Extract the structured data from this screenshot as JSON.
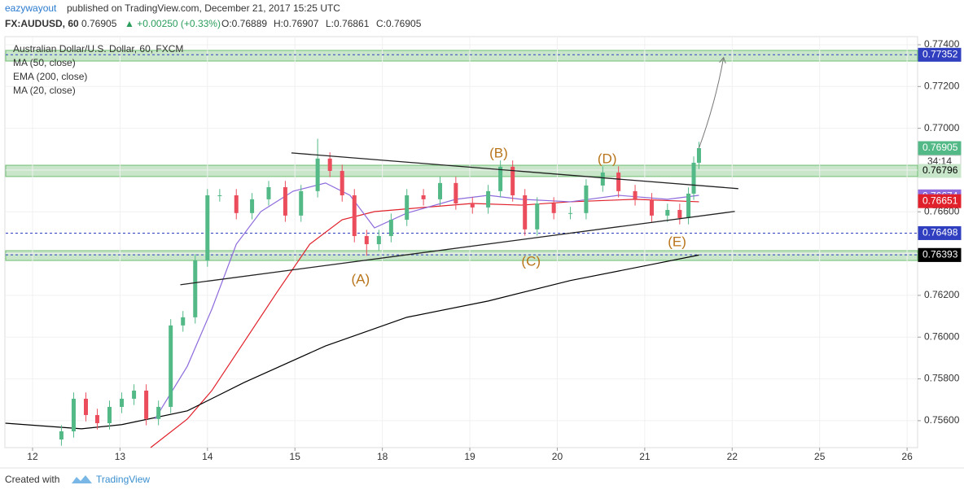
{
  "header": {
    "author": "eazywayout",
    "published": "published on TradingView.com, December 21, 2017 15:25 UTC",
    "symbol": "FX:AUDUSD, 60",
    "last": "0.76905",
    "change": "▲ +0.00250 (+0.33%)",
    "ohlc": [
      "O:0.76889",
      "H:0.76907",
      "L:0.76861",
      "C:0.76905"
    ]
  },
  "footer": {
    "created": "Created with",
    "brand": "TradingView"
  },
  "chart_data": {
    "type": "candlestick",
    "title": "Australian Dollar/U.S. Dollar, 60, FXCM",
    "xlim": [
      -0.307,
      10.12
    ],
    "xticks": [
      {
        "value": 0,
        "label": "12"
      },
      {
        "value": 1,
        "label": "13"
      },
      {
        "value": 2,
        "label": "14"
      },
      {
        "value": 3,
        "label": "15"
      },
      {
        "value": 4,
        "label": "18"
      },
      {
        "value": 5,
        "label": "19"
      },
      {
        "value": 6,
        "label": "20"
      },
      {
        "value": 7,
        "label": "21"
      },
      {
        "value": 8,
        "label": "22"
      },
      {
        "value": 9,
        "label": "25"
      },
      {
        "value": 10,
        "label": "26"
      }
    ],
    "ylim": [
      0.75471,
      0.77435
    ],
    "yticks": [
      {
        "value": 0.774,
        "label": "0.77400"
      },
      {
        "value": 0.772,
        "label": "0.77200"
      },
      {
        "value": 0.77,
        "label": "0.77000"
      },
      {
        "value": 0.768,
        "label": "0.76800"
      },
      {
        "value": 0.766,
        "label": "0.76600"
      },
      {
        "value": 0.764,
        "label": "0.76400"
      },
      {
        "value": 0.762,
        "label": "0.76200"
      },
      {
        "value": 0.76,
        "label": "0.76000"
      },
      {
        "value": 0.758,
        "label": "0.75800"
      },
      {
        "value": 0.756,
        "label": "0.75600"
      }
    ],
    "grid": true,
    "candles": {
      "up_color": "#53b987",
      "down_color": "#eb4d5c",
      "x": [
        0.33,
        0.47,
        0.61,
        0.74,
        0.88,
        1.02,
        1.16,
        1.3,
        1.44,
        1.58,
        1.72,
        1.86,
        2.0,
        2.14,
        2.33,
        2.51,
        2.7,
        2.89,
        3.07,
        3.26,
        3.4,
        3.54,
        3.68,
        3.82,
        3.96,
        4.1,
        4.28,
        4.47,
        4.66,
        4.84,
        5.03,
        5.21,
        5.35,
        5.49,
        5.63,
        5.77,
        5.96,
        6.15,
        6.33,
        6.52,
        6.7,
        6.89,
        7.08,
        7.26,
        7.4,
        7.5,
        7.56,
        7.62
      ],
      "open": [
        0.7551,
        0.75549,
        0.75705,
        0.75627,
        0.75588,
        0.75666,
        0.75705,
        0.75744,
        0.75608,
        0.75666,
        0.76056,
        0.76095,
        0.76367,
        0.76679,
        0.76679,
        0.76594,
        0.7666,
        0.76718,
        0.76582,
        0.76699,
        0.76855,
        0.76796,
        0.76679,
        0.76484,
        0.76445,
        0.76484,
        0.76562,
        0.76679,
        0.7666,
        0.76738,
        0.7664,
        0.76621,
        0.76699,
        0.76816,
        0.76679,
        0.76516,
        0.7664,
        0.76594,
        0.76594,
        0.76726,
        0.76788,
        0.76699,
        0.7666,
        0.76582,
        0.76609,
        0.7657,
        0.76687,
        0.76835
      ],
      "high": [
        0.75579,
        0.75735,
        0.75735,
        0.75657,
        0.75696,
        0.75735,
        0.75774,
        0.75774,
        0.75696,
        0.76086,
        0.76125,
        0.76397,
        0.76709,
        0.76709,
        0.76709,
        0.7669,
        0.76748,
        0.76748,
        0.76729,
        0.7695,
        0.76885,
        0.76826,
        0.76709,
        0.76514,
        0.76514,
        0.76592,
        0.76709,
        0.76709,
        0.76768,
        0.76768,
        0.7667,
        0.76729,
        0.76846,
        0.76846,
        0.76709,
        0.7667,
        0.7667,
        0.76624,
        0.76756,
        0.76818,
        0.76818,
        0.76729,
        0.7669,
        0.76639,
        0.76639,
        0.76717,
        0.76865,
        0.76935
      ],
      "low": [
        0.7548,
        0.75519,
        0.75597,
        0.75558,
        0.75558,
        0.75636,
        0.75675,
        0.75578,
        0.75578,
        0.75636,
        0.76026,
        0.76065,
        0.76337,
        0.76649,
        0.76564,
        0.76564,
        0.7663,
        0.76552,
        0.76552,
        0.76669,
        0.76766,
        0.76649,
        0.76454,
        0.7639,
        0.76415,
        0.76454,
        0.76532,
        0.7663,
        0.7663,
        0.7661,
        0.76591,
        0.76591,
        0.76669,
        0.76649,
        0.76486,
        0.76486,
        0.76564,
        0.76564,
        0.76564,
        0.76696,
        0.76669,
        0.7663,
        0.76552,
        0.76552,
        0.7654,
        0.7654,
        0.76657,
        0.76805
      ],
      "close": [
        0.75549,
        0.75705,
        0.75627,
        0.75588,
        0.75666,
        0.75705,
        0.75744,
        0.75608,
        0.75666,
        0.76056,
        0.76095,
        0.76367,
        0.76679,
        0.76679,
        0.76594,
        0.7666,
        0.76718,
        0.76582,
        0.76699,
        0.76855,
        0.76796,
        0.76679,
        0.76484,
        0.76445,
        0.76484,
        0.76562,
        0.76679,
        0.7666,
        0.76738,
        0.7664,
        0.76621,
        0.76699,
        0.76816,
        0.76679,
        0.76516,
        0.7664,
        0.76594,
        0.76594,
        0.76726,
        0.76788,
        0.76699,
        0.7666,
        0.76582,
        0.76609,
        0.7657,
        0.76687,
        0.76835,
        0.76905
      ]
    },
    "series": [
      {
        "name": "MA (50, close)",
        "color": "#e0202a",
        "x": [
          1.35,
          1.77,
          2.05,
          2.42,
          2.79,
          3.17,
          3.54,
          3.91,
          4.47,
          5.03,
          5.59,
          6.15,
          6.89,
          7.62
        ],
        "values": [
          0.75471,
          0.75608,
          0.75744,
          0.75978,
          0.76212,
          0.76445,
          0.76562,
          0.76601,
          0.76621,
          0.7664,
          0.76632,
          0.76648,
          0.7666,
          0.76648
        ]
      },
      {
        "name": "EMA (200, close)",
        "color": "#000000",
        "x": [
          -0.31,
          0.56,
          1.02,
          1.77,
          2.42,
          3.35,
          4.28,
          5.21,
          6.15,
          7.08,
          7.62
        ],
        "values": [
          0.75588,
          0.75561,
          0.75581,
          0.75647,
          0.75783,
          0.75958,
          0.76095,
          0.76173,
          0.76271,
          0.76348,
          0.76393
        ]
      },
      {
        "name": "MA (20, close)",
        "color": "#8e6bdc",
        "x": [
          1.4,
          1.77,
          2.05,
          2.33,
          2.61,
          2.98,
          3.35,
          3.63,
          3.91,
          4.28,
          4.84,
          5.21,
          5.59,
          6.15,
          6.7,
          7.26,
          7.62
        ],
        "values": [
          0.75608,
          0.75861,
          0.76134,
          0.76445,
          0.76601,
          0.76699,
          0.76738,
          0.76679,
          0.76523,
          0.76594,
          0.7666,
          0.76679,
          0.7666,
          0.76648,
          0.76679,
          0.7666,
          0.76679
        ]
      }
    ],
    "zones": [
      {
        "from": 0.77322,
        "to": 0.77373
      },
      {
        "from": 0.76769,
        "to": 0.76823
      },
      {
        "from": 0.76367,
        "to": 0.76414
      }
    ],
    "price_labels": [
      {
        "value": 0.77352,
        "label": "0.77352",
        "color": "#2f3fbf",
        "text_color": "#ffffff",
        "dotted": true
      },
      {
        "value": 0.76905,
        "label": "0.76905",
        "color": "#53b987",
        "text_color": "#ffffff",
        "dotted": false
      },
      {
        "value": 0.76796,
        "label": "0.76796",
        "color": "#c8e6c9",
        "text_color": "#000000",
        "dotted": false
      },
      {
        "value": 0.76674,
        "label": "0.76674",
        "color": "#8e6bdc",
        "text_color": "#ffffff",
        "dotted": false
      },
      {
        "value": 0.76651,
        "label": "0.76651",
        "color": "#e0202a",
        "text_color": "#ffffff",
        "dotted": false
      },
      {
        "value": 0.76498,
        "label": "0.76498",
        "color": "#2f3fbf",
        "text_color": "#ffffff",
        "dotted": true
      },
      {
        "value": 0.76394,
        "label": "0.76394",
        "color": "#ffffff",
        "text_color": "#000000",
        "dotted": true
      },
      {
        "value": 0.76393,
        "label": "0.76393",
        "color": "#000000",
        "text_color": "#ffffff",
        "dotted": false
      }
    ],
    "countdown": "34:14",
    "trendlines": [
      {
        "x": [
          2.96,
          8.07
        ],
        "y": [
          0.76882,
          0.76711
        ]
      },
      {
        "x": [
          1.69,
          8.03
        ],
        "y": [
          0.76251,
          0.76602
        ]
      }
    ],
    "arrow": {
      "x": [
        7.62,
        7.9
      ],
      "y": [
        0.76905,
        0.77335
      ]
    },
    "annotations": [
      {
        "text": "(A)",
        "x": 3.75,
        "y": 0.76274
      },
      {
        "text": "(B)",
        "x": 5.33,
        "y": 0.76878
      },
      {
        "text": "(C)",
        "x": 5.7,
        "y": 0.76359
      },
      {
        "text": "(D)",
        "x": 6.57,
        "y": 0.76851
      },
      {
        "text": "(E)",
        "x": 7.37,
        "y": 0.76453
      }
    ],
    "annotation_color": "#b8741a"
  }
}
